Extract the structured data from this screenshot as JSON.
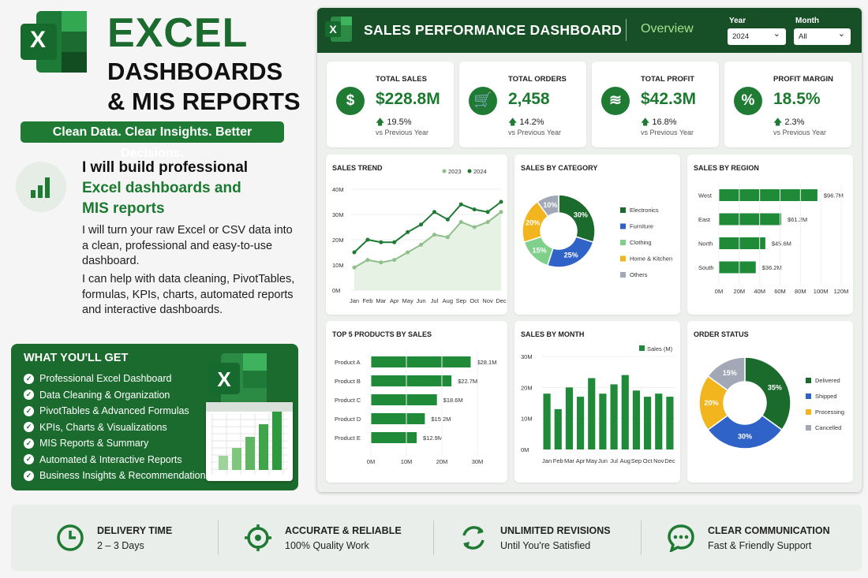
{
  "hero": {
    "title": "EXCEL",
    "subtitle_line1": "DASHBOARDS",
    "subtitle_line2": "& MIS REPORTS",
    "tagline": "Clean Data. Clear Insights. Better Decisions.",
    "logo_letter": "X"
  },
  "pitch": {
    "line1": "I will build professional",
    "line2": "Excel dashboards and",
    "line3": "MIS reports",
    "para1": "I will turn your raw Excel or CSV data into a clean, professional and easy-to-use dashboard.",
    "para2": "I can help with data cleaning, PivotTables, formulas, KPIs, charts, automated reports and interactive dashboards."
  },
  "what_you_get": {
    "title": "WHAT YOU'LL GET",
    "items": [
      "Professional Excel Dashboard",
      "Data Cleaning & Organization",
      "PivotTables & Advanced Formulas",
      "KPIs, Charts & Visualizations",
      "MIS Reports & Summary",
      "Automated & Interactive Reports",
      "Business Insights & Recommendations"
    ],
    "mini_bars": [
      0.18,
      0.28,
      0.42,
      0.58,
      0.74
    ]
  },
  "dashboard": {
    "title": "SALES PERFORMANCE DASHBOARD",
    "view": "Overview",
    "year_label": "Year",
    "year_value": "2024",
    "month_label": "Month",
    "month_value": "All",
    "kpis": [
      {
        "label": "TOTAL SALES",
        "value": "$228.8M",
        "change": "19.5%",
        "vs": "vs Previous Year",
        "icon": "dollar-icon",
        "glyph": "$"
      },
      {
        "label": "TOTAL ORDERS",
        "value": "2,458",
        "change": "14.2%",
        "vs": "vs Previous Year",
        "icon": "cart-icon",
        "glyph": "🛒"
      },
      {
        "label": "TOTAL PROFIT",
        "value": "$42.3M",
        "change": "16.8%",
        "vs": "vs Previous Year",
        "icon": "coins-icon",
        "glyph": "≋"
      },
      {
        "label": "PROFIT MARGIN",
        "value": "18.5%",
        "change": "2.3%",
        "vs": "vs Previous Year",
        "icon": "percent-icon",
        "glyph": "%"
      }
    ]
  },
  "footer": {
    "items": [
      {
        "title": "DELIVERY TIME",
        "sub": "2 – 3 Days",
        "icon": "clock-icon"
      },
      {
        "title": "ACCURATE & RELIABLE",
        "sub": "100% Quality Work",
        "icon": "target-icon"
      },
      {
        "title": "UNLIMITED REVISIONS",
        "sub": "Until You're Satisfied",
        "icon": "refresh-icon"
      },
      {
        "title": "CLEAR COMMUNICATION",
        "sub": "Fast & Friendly Support",
        "icon": "chat-icon"
      }
    ]
  },
  "chart_data": [
    {
      "type": "line",
      "title": "SALES TREND",
      "x": [
        "Jan",
        "Feb",
        "Mar",
        "Apr",
        "May",
        "Jun",
        "Jul",
        "Aug",
        "Sep",
        "Oct",
        "Nov",
        "Dec"
      ],
      "yticks": [
        "0M",
        "10M",
        "20M",
        "30M",
        "40M"
      ],
      "ylim": [
        0,
        40
      ],
      "series": [
        {
          "name": "2023",
          "values": [
            9,
            12,
            11,
            12,
            15,
            18,
            22,
            21,
            27,
            25,
            27,
            31
          ],
          "color": "#8fbf8a"
        },
        {
          "name": "2024",
          "values": [
            15,
            20,
            19,
            19,
            23,
            26,
            31,
            28,
            34,
            32,
            31,
            35
          ],
          "color": "#1f7a34"
        }
      ],
      "legend": "top-right"
    },
    {
      "type": "pie",
      "title": "SALES BY CATEGORY",
      "categories": [
        "Electronics",
        "Furniture",
        "Clothing",
        "Home & Kitchen",
        "Others"
      ],
      "values": [
        30,
        25,
        15,
        20,
        10
      ],
      "labels": [
        "30%",
        "25%",
        "15%",
        "20%",
        "10%"
      ],
      "colors": [
        "#1a6b2c",
        "#2f63c7",
        "#7fd08a",
        "#f2b51e",
        "#a3a8b6"
      ]
    },
    {
      "type": "bar",
      "title": "SALES BY REGION",
      "categories": [
        "West",
        "East",
        "North",
        "South"
      ],
      "values": [
        96.7,
        61.2,
        45.6,
        36.2
      ],
      "labels": [
        "$96.7M",
        "$61.2M",
        "$45.6M",
        "$36.2M"
      ],
      "xticks": [
        "0M",
        "20M",
        "40M",
        "60M",
        "80M",
        "100M",
        "120M"
      ],
      "xlim": [
        0,
        120
      ]
    },
    {
      "type": "bar",
      "title": "TOP 5 PRODUCTS BY SALES",
      "categories": [
        "Product A",
        "Product B",
        "Product C",
        "Product D",
        "Product E"
      ],
      "values": [
        28.1,
        22.7,
        18.6,
        15.2,
        12.9
      ],
      "labels": [
        "$28.1M",
        "$22.7M",
        "$18.6M",
        "$15.2M",
        "$12.9M"
      ],
      "xticks": [
        "0M",
        "10M",
        "20M",
        "30M"
      ],
      "xlim": [
        0,
        30
      ]
    },
    {
      "type": "bar",
      "title": "SALES BY MONTH",
      "categories": [
        "Jan",
        "Feb",
        "Mar",
        "Apr",
        "May",
        "Jun",
        "Jul",
        "Aug",
        "Sep",
        "Oct",
        "Nov",
        "Dec"
      ],
      "values": [
        18,
        13,
        20,
        17,
        23,
        18,
        21,
        24,
        19,
        17,
        18,
        17
      ],
      "yticks": [
        "0M",
        "10M",
        "20M",
        "30M"
      ],
      "ylim": [
        0,
        30
      ],
      "series_name": "Sales (M)",
      "legend": "top-right"
    },
    {
      "type": "pie",
      "title": "ORDER STATUS",
      "categories": [
        "Delivered",
        "Shipped",
        "Processing",
        "Cancelled"
      ],
      "values": [
        35,
        30,
        20,
        15
      ],
      "labels": [
        "35%",
        "30%",
        "20%",
        "15%"
      ],
      "colors": [
        "#1a6b2c",
        "#2f63c7",
        "#f2b51e",
        "#a3a8b6"
      ]
    }
  ]
}
